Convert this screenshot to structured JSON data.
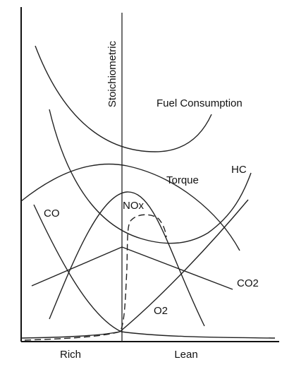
{
  "diagram": {
    "stoichiometric_label": "Stoichiometric",
    "curves": [
      {
        "label": "Fuel Consumption"
      },
      {
        "label": "Torque"
      },
      {
        "label": "HC"
      },
      {
        "label": "CO"
      },
      {
        "label": "NOx"
      },
      {
        "label": "CO2"
      },
      {
        "label": "O2"
      }
    ],
    "x_axis": {
      "left_label": "Rich",
      "right_label": "Lean"
    }
  }
}
